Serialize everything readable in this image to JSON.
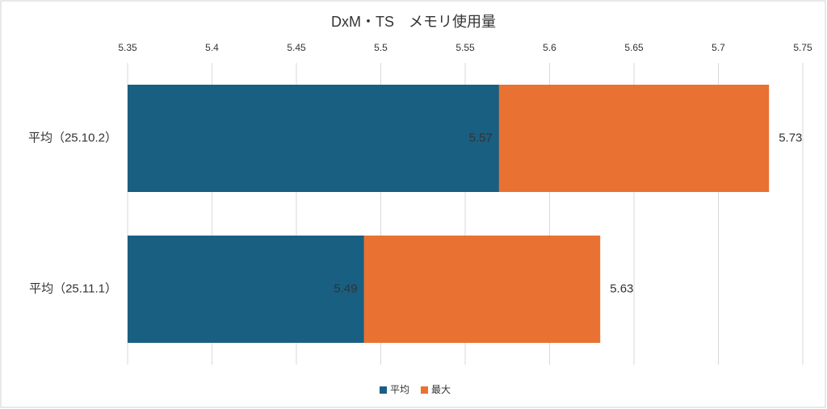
{
  "chart_data": {
    "type": "hbar_overlap",
    "title": "DxM・TS　メモリ使用量",
    "categories": [
      "平均（25.10.2）",
      "平均（25.11.1）"
    ],
    "series": [
      {
        "name": "平均",
        "color": "#195f81",
        "values": [
          5.57,
          5.49
        ]
      },
      {
        "name": "最大",
        "color": "#e97132",
        "values": [
          5.73,
          5.63
        ]
      }
    ],
    "xlim": [
      5.35,
      5.75
    ],
    "xticks": [
      5.35,
      5.4,
      5.45,
      5.5,
      5.55,
      5.6,
      5.65,
      5.7,
      5.75
    ],
    "grid": true,
    "legend": "bottom"
  }
}
